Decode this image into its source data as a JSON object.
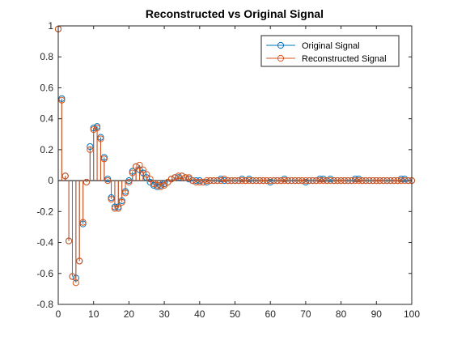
{
  "chart_data": {
    "type": "stem",
    "title": "Reconstructed vs Original Signal",
    "xlabel": "",
    "ylabel": "",
    "xlim": [
      0,
      100
    ],
    "ylim": [
      -0.8,
      1
    ],
    "xticks": [
      0,
      10,
      20,
      30,
      40,
      50,
      60,
      70,
      80,
      90,
      100
    ],
    "yticks": [
      -0.8,
      -0.6,
      -0.4,
      -0.2,
      0,
      0.2,
      0.4,
      0.6,
      0.8,
      1
    ],
    "xtick_labels": [
      "0",
      "10",
      "20",
      "30",
      "40",
      "50",
      "60",
      "70",
      "80",
      "90",
      "100"
    ],
    "ytick_labels": [
      "-0.8",
      "-0.6",
      "-0.4",
      "-0.2",
      "0",
      "0.2",
      "0.4",
      "0.6",
      "0.8",
      "1"
    ],
    "grid": false,
    "legend_position": "top-right",
    "series": [
      {
        "name": "Original Signal",
        "color": "#0072BD",
        "x": [
          0,
          1,
          2,
          3,
          4,
          5,
          6,
          7,
          8,
          9,
          10,
          11,
          12,
          13,
          14,
          15,
          16,
          17,
          18,
          19,
          20,
          21,
          22,
          23,
          24,
          25,
          26,
          27,
          28,
          29,
          30,
          31,
          32,
          33,
          34,
          35,
          36,
          37,
          38,
          39,
          40,
          41,
          42,
          43,
          44,
          45,
          46,
          47,
          48,
          49,
          50,
          51,
          52,
          53,
          54,
          55,
          56,
          57,
          58,
          59,
          60,
          61,
          62,
          63,
          64,
          65,
          66,
          67,
          68,
          69,
          70,
          71,
          72,
          73,
          74,
          75,
          76,
          77,
          78,
          79,
          80,
          81,
          82,
          83,
          84,
          85,
          86,
          87,
          88,
          89,
          90,
          91,
          92,
          93,
          94,
          95,
          96,
          97,
          98,
          99,
          100
        ],
        "y": [
          0.98,
          0.53,
          0.03,
          -0.39,
          -0.62,
          -0.63,
          -0.52,
          -0.28,
          -0.01,
          0.22,
          0.34,
          0.35,
          0.28,
          0.15,
          0.01,
          -0.11,
          -0.17,
          -0.17,
          -0.13,
          -0.07,
          0.0,
          0.06,
          0.09,
          0.07,
          0.05,
          0.02,
          -0.01,
          -0.03,
          -0.04,
          -0.03,
          -0.02,
          -0.01,
          0.01,
          0.02,
          0.02,
          0.03,
          0.02,
          0.01,
          0.0,
          0.0,
          0.0,
          -0.01,
          -0.01,
          0.0,
          0.0,
          0.0,
          0.01,
          0.0,
          0.0,
          0.0,
          0.0,
          0.0,
          0.01,
          0.0,
          0.01,
          0.0,
          0.0,
          0.0,
          0.0,
          0.0,
          -0.01,
          0.0,
          0.0,
          0.0,
          0.01,
          0.0,
          0.0,
          0.0,
          0.0,
          0.0,
          -0.01,
          0.0,
          0.0,
          0.0,
          0.01,
          0.01,
          0.0,
          0.01,
          0.0,
          0.0,
          0.0,
          0.0,
          0.0,
          0.0,
          0.01,
          0.01,
          0.0,
          0.0,
          0.0,
          0.0,
          0.0,
          0.0,
          0.0,
          0.0,
          0.0,
          0.0,
          0.0,
          0.01,
          0.01,
          0.0,
          0.0
        ]
      },
      {
        "name": "Reconstructed Signal",
        "color": "#D95319",
        "x": [
          0,
          1,
          2,
          3,
          4,
          5,
          6,
          7,
          8,
          9,
          10,
          11,
          12,
          13,
          14,
          15,
          16,
          17,
          18,
          19,
          20,
          21,
          22,
          23,
          24,
          25,
          26,
          27,
          28,
          29,
          30,
          31,
          32,
          33,
          34,
          35,
          36,
          37,
          38,
          39,
          40,
          41,
          42,
          43,
          44,
          45,
          46,
          47,
          48,
          49,
          50,
          51,
          52,
          53,
          54,
          55,
          56,
          57,
          58,
          59,
          60,
          61,
          62,
          63,
          64,
          65,
          66,
          67,
          68,
          69,
          70,
          71,
          72,
          73,
          74,
          75,
          76,
          77,
          78,
          79,
          80,
          81,
          82,
          83,
          84,
          85,
          86,
          87,
          88,
          89,
          90,
          91,
          92,
          93,
          94,
          95,
          96,
          97,
          98,
          99,
          100
        ],
        "y": [
          0.98,
          0.52,
          0.03,
          -0.39,
          -0.62,
          -0.66,
          -0.52,
          -0.27,
          -0.01,
          0.2,
          0.33,
          0.34,
          0.27,
          0.14,
          0.0,
          -0.12,
          -0.18,
          -0.18,
          -0.14,
          -0.08,
          -0.01,
          0.05,
          0.09,
          0.1,
          0.07,
          0.04,
          0.01,
          -0.02,
          -0.03,
          -0.04,
          -0.03,
          -0.01,
          0.01,
          0.02,
          0.03,
          0.03,
          0.02,
          0.02,
          0.0,
          -0.01,
          -0.01,
          -0.01,
          0.0,
          0.0,
          0.0,
          0.0,
          0.0,
          0.01,
          0.0,
          0.0,
          0.0,
          0.0,
          0.0,
          0.0,
          0.0,
          0.0,
          0.0,
          0.0,
          0.0,
          0.0,
          0.0,
          0.0,
          0.0,
          0.0,
          0.0,
          0.0,
          0.0,
          0.0,
          0.0,
          0.0,
          0.0,
          0.0,
          0.0,
          0.0,
          0.0,
          0.0,
          0.0,
          0.0,
          0.0,
          0.0,
          0.0,
          0.0,
          0.0,
          0.0,
          0.0,
          0.0,
          0.0,
          0.0,
          0.0,
          0.0,
          0.0,
          0.0,
          0.0,
          0.0,
          0.0,
          0.0,
          0.0,
          0.0,
          0.0,
          0.0,
          0.0
        ]
      }
    ]
  }
}
